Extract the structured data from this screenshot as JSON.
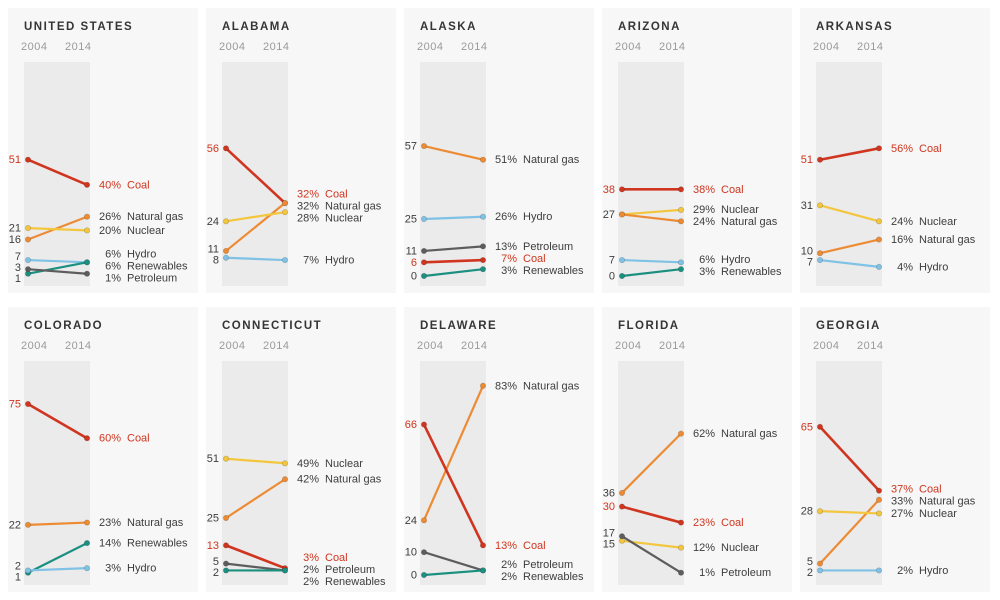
{
  "unit": "%",
  "theme": {
    "page_bg": "#ffffff",
    "panel_bg": "#f7f7f7",
    "band_color": "#ebebeb",
    "label_color": "#3d3d3d",
    "year_label_color": "#9a9a9a",
    "title_color": "#353535"
  },
  "series_meta": {
    "coal": {
      "label": "Coal",
      "color": "#d0351f"
    },
    "natural_gas": {
      "label": "Natural gas",
      "color": "#ec8b33"
    },
    "nuclear": {
      "label": "Nuclear",
      "color": "#f3c63e"
    },
    "hydro": {
      "label": "Hydro",
      "color": "#7fc2e5"
    },
    "renewables": {
      "label": "Renewables",
      "color": "#1b9080"
    },
    "petroleum": {
      "label": "Petroleum",
      "color": "#5d5d5d"
    }
  },
  "chart_data": [
    {
      "type": "line",
      "title": "UNITED STATES",
      "x": [
        "2004",
        "2014"
      ],
      "ylim": [
        0,
        100
      ],
      "grid": false,
      "series": [
        {
          "key": "coal",
          "values": [
            51,
            40
          ]
        },
        {
          "key": "natural_gas",
          "values": [
            16,
            26
          ]
        },
        {
          "key": "nuclear",
          "values": [
            21,
            20
          ]
        },
        {
          "key": "hydro",
          "values": [
            7,
            6
          ]
        },
        {
          "key": "renewables",
          "values": [
            1,
            6
          ]
        },
        {
          "key": "petroleum",
          "values": [
            3,
            1
          ]
        }
      ]
    },
    {
      "type": "line",
      "title": "ALABAMA",
      "x": [
        "2004",
        "2014"
      ],
      "ylim": [
        0,
        100
      ],
      "grid": false,
      "series": [
        {
          "key": "coal",
          "values": [
            56,
            32
          ]
        },
        {
          "key": "natural_gas",
          "values": [
            11,
            32
          ]
        },
        {
          "key": "nuclear",
          "values": [
            24,
            28
          ]
        },
        {
          "key": "hydro",
          "values": [
            8,
            7
          ]
        }
      ]
    },
    {
      "type": "line",
      "title": "ALASKA",
      "x": [
        "2004",
        "2014"
      ],
      "ylim": [
        0,
        100
      ],
      "grid": false,
      "series": [
        {
          "key": "natural_gas",
          "values": [
            57,
            51
          ]
        },
        {
          "key": "hydro",
          "values": [
            25,
            26
          ]
        },
        {
          "key": "petroleum",
          "values": [
            11,
            13
          ]
        },
        {
          "key": "coal",
          "values": [
            6,
            7
          ]
        },
        {
          "key": "renewables",
          "values": [
            0,
            3
          ]
        }
      ]
    },
    {
      "type": "line",
      "title": "ARIZONA",
      "x": [
        "2004",
        "2014"
      ],
      "ylim": [
        0,
        100
      ],
      "grid": false,
      "series": [
        {
          "key": "coal",
          "values": [
            38,
            38
          ]
        },
        {
          "key": "nuclear",
          "values": [
            27,
            29
          ]
        },
        {
          "key": "natural_gas",
          "values": [
            27,
            24
          ]
        },
        {
          "key": "hydro",
          "values": [
            7,
            6
          ]
        },
        {
          "key": "renewables",
          "values": [
            0,
            3
          ]
        }
      ]
    },
    {
      "type": "line",
      "title": "ARKANSAS",
      "x": [
        "2004",
        "2014"
      ],
      "ylim": [
        0,
        100
      ],
      "grid": false,
      "series": [
        {
          "key": "coal",
          "values": [
            51,
            56
          ]
        },
        {
          "key": "nuclear",
          "values": [
            31,
            24
          ]
        },
        {
          "key": "natural_gas",
          "values": [
            10,
            16
          ]
        },
        {
          "key": "hydro",
          "values": [
            7,
            4
          ]
        }
      ]
    },
    {
      "type": "line",
      "title": "COLORADO",
      "x": [
        "2004",
        "2014"
      ],
      "ylim": [
        0,
        100
      ],
      "grid": false,
      "series": [
        {
          "key": "coal",
          "values": [
            75,
            60
          ]
        },
        {
          "key": "natural_gas",
          "values": [
            22,
            23
          ]
        },
        {
          "key": "renewables",
          "values": [
            1,
            14
          ]
        },
        {
          "key": "hydro",
          "values": [
            2,
            3
          ]
        }
      ]
    },
    {
      "type": "line",
      "title": "CONNECTICUT",
      "x": [
        "2004",
        "2014"
      ],
      "ylim": [
        0,
        100
      ],
      "grid": false,
      "series": [
        {
          "key": "nuclear",
          "values": [
            51,
            49
          ]
        },
        {
          "key": "natural_gas",
          "values": [
            25,
            42
          ]
        },
        {
          "key": "coal",
          "values": [
            13,
            3
          ]
        },
        {
          "key": "petroleum",
          "values": [
            5,
            2
          ]
        },
        {
          "key": "renewables",
          "values": [
            2,
            2
          ]
        }
      ]
    },
    {
      "type": "line",
      "title": "DELAWARE",
      "x": [
        "2004",
        "2014"
      ],
      "ylim": [
        0,
        100
      ],
      "grid": false,
      "series": [
        {
          "key": "natural_gas",
          "values": [
            24,
            83
          ]
        },
        {
          "key": "coal",
          "values": [
            66,
            13
          ]
        },
        {
          "key": "petroleum",
          "values": [
            10,
            2
          ]
        },
        {
          "key": "renewables",
          "values": [
            0,
            2
          ]
        }
      ]
    },
    {
      "type": "line",
      "title": "FLORIDA",
      "x": [
        "2004",
        "2014"
      ],
      "ylim": [
        0,
        100
      ],
      "grid": false,
      "series": [
        {
          "key": "natural_gas",
          "values": [
            36,
            62
          ]
        },
        {
          "key": "coal",
          "values": [
            30,
            23
          ]
        },
        {
          "key": "nuclear",
          "values": [
            15,
            12
          ]
        },
        {
          "key": "petroleum",
          "values": [
            17,
            1
          ]
        }
      ]
    },
    {
      "type": "line",
      "title": "GEORGIA",
      "x": [
        "2004",
        "2014"
      ],
      "ylim": [
        0,
        100
      ],
      "grid": false,
      "series": [
        {
          "key": "coal",
          "values": [
            65,
            37
          ]
        },
        {
          "key": "natural_gas",
          "values": [
            5,
            33
          ]
        },
        {
          "key": "nuclear",
          "values": [
            28,
            27
          ]
        },
        {
          "key": "hydro",
          "values": [
            2,
            2
          ]
        }
      ]
    }
  ]
}
